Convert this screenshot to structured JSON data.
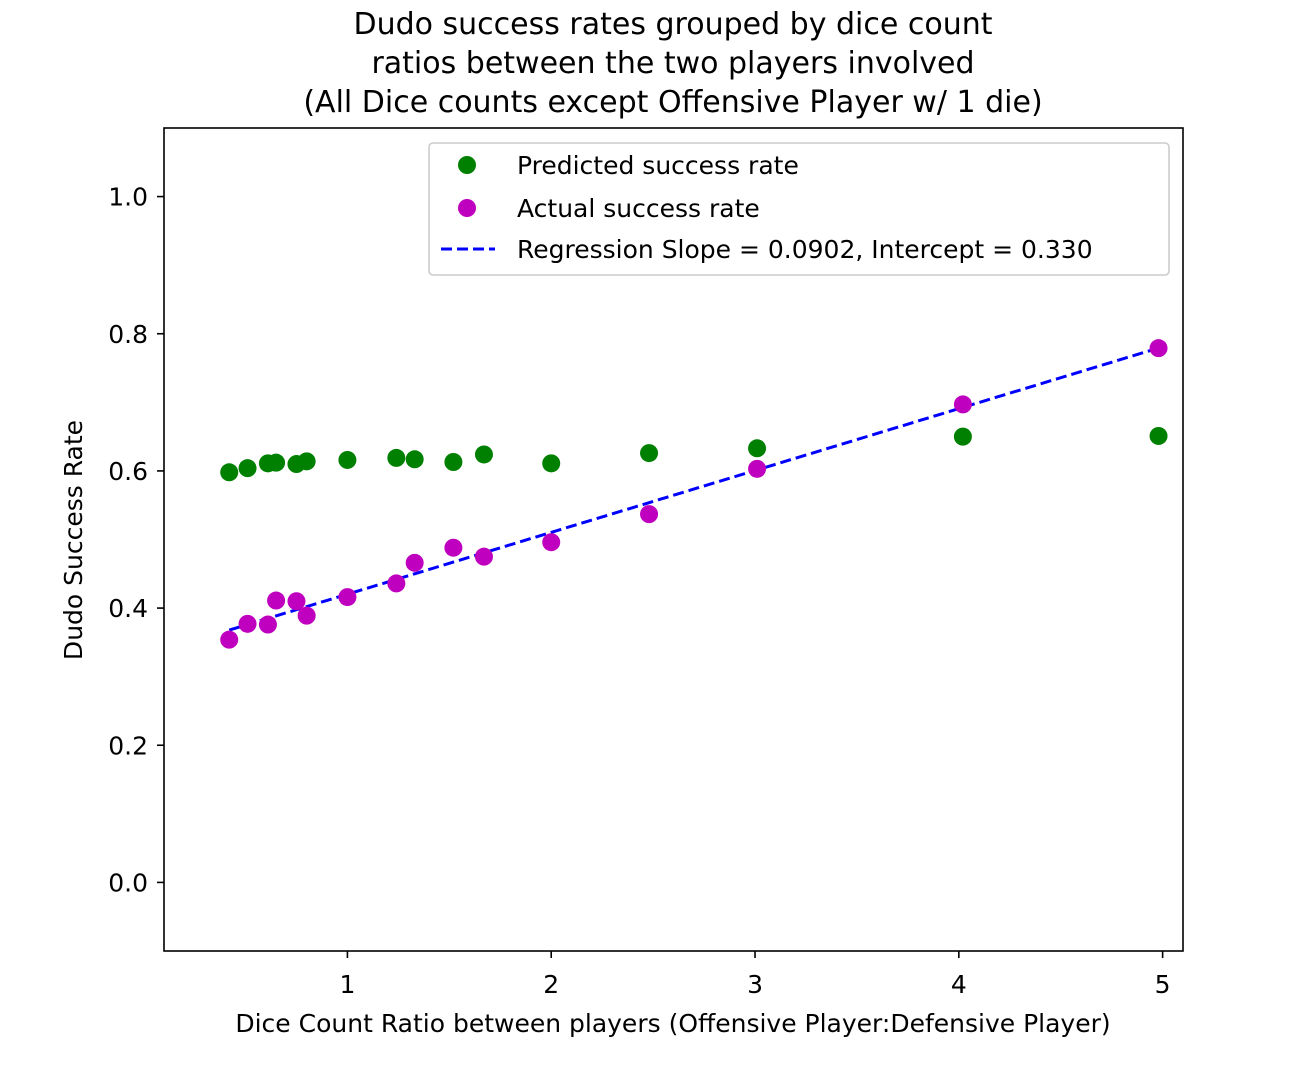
{
  "chart_data": {
    "type": "scatter",
    "title_lines": [
      "Dudo success rates grouped by dice count",
      "ratios between the two players involved",
      "(All Dice counts except Offensive Player w/ 1 die)"
    ],
    "xlabel": "Dice Count Ratio between players (Offensive Player:Defensive Player)",
    "ylabel": "Dudo Success Rate",
    "xlim": [
      0.1,
      5.1
    ],
    "ylim": [
      -0.1,
      1.1
    ],
    "x_ticks": [
      1,
      2,
      3,
      4,
      5
    ],
    "x_tick_labels": [
      "1",
      "2",
      "3",
      "4",
      "5"
    ],
    "y_ticks": [
      0.0,
      0.2,
      0.4,
      0.6,
      0.8,
      1.0
    ],
    "y_tick_labels": [
      "0.0",
      "0.2",
      "0.4",
      "0.6",
      "0.8",
      "1.0"
    ],
    "grid": false,
    "legend_position": "top-right",
    "series": [
      {
        "name": "Predicted success rate",
        "kind": "scatter",
        "color": "#008000",
        "points": [
          [
            0.42,
            0.598
          ],
          [
            0.51,
            0.604
          ],
          [
            0.61,
            0.611
          ],
          [
            0.65,
            0.612
          ],
          [
            0.75,
            0.61
          ],
          [
            0.8,
            0.614
          ],
          [
            1.0,
            0.616
          ],
          [
            1.24,
            0.619
          ],
          [
            1.33,
            0.617
          ],
          [
            1.52,
            0.613
          ],
          [
            1.67,
            0.624
          ],
          [
            2.0,
            0.611
          ],
          [
            2.48,
            0.626
          ],
          [
            3.01,
            0.633
          ],
          [
            4.02,
            0.65
          ],
          [
            4.98,
            0.651
          ]
        ]
      },
      {
        "name": "Actual success rate",
        "kind": "scatter",
        "color": "#bf00bf",
        "points": [
          [
            0.42,
            0.354
          ],
          [
            0.51,
            0.377
          ],
          [
            0.61,
            0.376
          ],
          [
            0.65,
            0.411
          ],
          [
            0.75,
            0.41
          ],
          [
            0.8,
            0.389
          ],
          [
            1.0,
            0.416
          ],
          [
            1.24,
            0.436
          ],
          [
            1.33,
            0.466
          ],
          [
            1.52,
            0.488
          ],
          [
            1.67,
            0.475
          ],
          [
            2.0,
            0.496
          ],
          [
            2.48,
            0.537
          ],
          [
            3.01,
            0.603
          ],
          [
            4.02,
            0.697
          ],
          [
            4.98,
            0.779
          ]
        ]
      },
      {
        "name": "Regression Slope = 0.0902, Intercept = 0.330",
        "kind": "line",
        "style": "dashed",
        "color": "#0000ff",
        "x": [
          0.42,
          4.98
        ],
        "slope": 0.0902,
        "intercept": 0.33
      }
    ]
  }
}
